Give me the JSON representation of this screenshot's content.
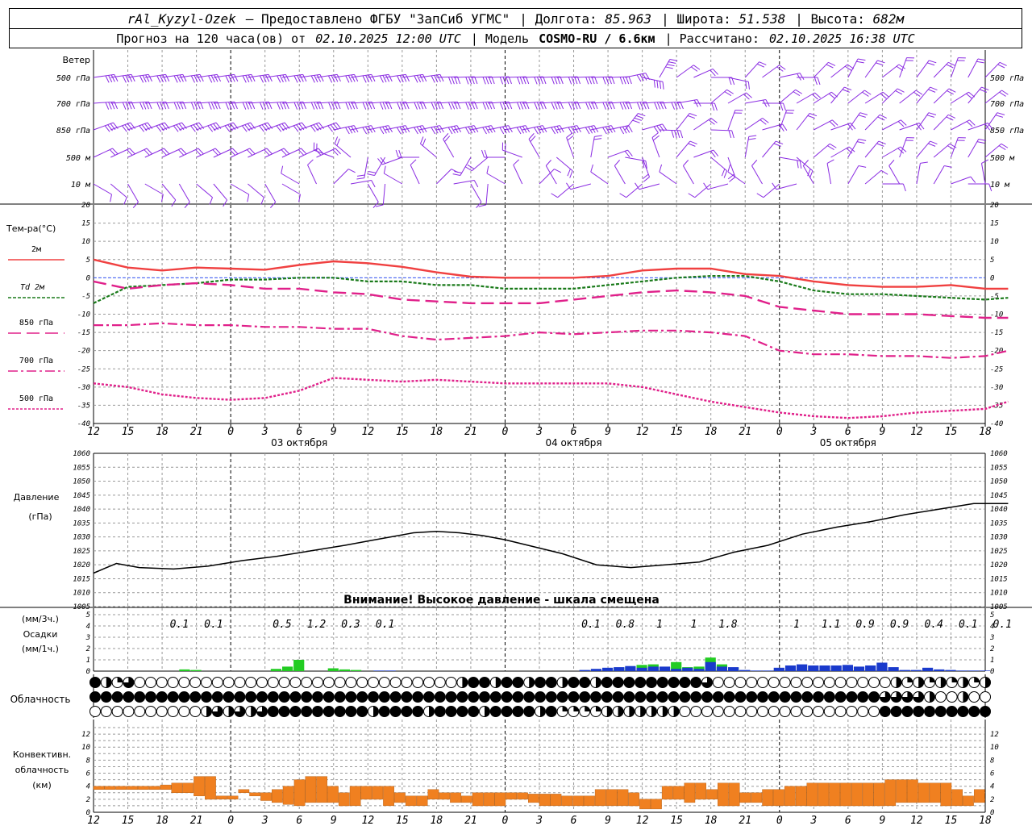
{
  "header": {
    "station": "rAl_Kyzyl-Ozek",
    "provider": "— Предоставлено ФГБУ \"ЗапСиб УГМС\"",
    "lon_label": "Долгота:",
    "lon": "85.963",
    "lat_label": "Широта:",
    "lat": "51.538",
    "alt_label": "Высота:",
    "alt": "682м",
    "forecast": "Прогноз на 120 часа(ов) от",
    "base_time": "02.10.2025 12:00 UTC",
    "model_label": "| Модель",
    "model": "COSMO-RU / 6.6км",
    "calc_label": "| Рассчитано:",
    "calc_time": "02.10.2025 16:38 UTC"
  },
  "time_axis": {
    "hour_labels": [
      "12",
      "15",
      "18",
      "21",
      "0",
      "3",
      "6",
      "9",
      "12",
      "15",
      "18",
      "21",
      "0",
      "3",
      "6",
      "9",
      "12",
      "15",
      "18",
      "21",
      "0",
      "3",
      "6",
      "9",
      "12",
      "15",
      "18"
    ],
    "day_labels": [
      {
        "text": "03 октября",
        "hour": 18
      },
      {
        "text": "04 октября",
        "hour": 42
      },
      {
        "text": "05 октября",
        "hour": 66
      }
    ],
    "midnights": [
      12,
      36,
      60
    ]
  },
  "wind_panel": {
    "title": "Ветер",
    "levels": [
      "500 гПа",
      "700 гПа",
      "850 гПа",
      "500 м",
      "10 м"
    ]
  },
  "temp_panel": {
    "title": "Тем-ра(°C)",
    "legend": [
      "2м",
      "Td 2м",
      "850 гПа",
      "700 гПа",
      "500 гПа"
    ],
    "ticks": [
      "20",
      "15",
      "10",
      "5",
      "0",
      "-5",
      "-10",
      "-15",
      "-20",
      "-25",
      "-30",
      "-35",
      "-40"
    ]
  },
  "pressure_panel": {
    "title1": "Давление",
    "title2": "(гПа)",
    "ticks": [
      "1060",
      "1055",
      "1050",
      "1045",
      "1040",
      "1035",
      "1030",
      "1025",
      "1020",
      "1015",
      "1010",
      "1005"
    ],
    "warning": "Внимание! Высокое давление - шкала смещена"
  },
  "precip_panel": {
    "label1": "(мм/3ч.)",
    "label2": "Осадки",
    "label3": "(мм/1ч.)",
    "ticks": [
      "5",
      "4",
      "3",
      "2",
      "1",
      "0"
    ],
    "sums": [
      {
        "hour": 7.5,
        "text": "0.1"
      },
      {
        "hour": 10.5,
        "text": "0.1"
      },
      {
        "hour": 16.5,
        "text": "0.5"
      },
      {
        "hour": 19.5,
        "text": "1.2"
      },
      {
        "hour": 22.5,
        "text": "0.3"
      },
      {
        "hour": 25.5,
        "text": "0.1"
      },
      {
        "hour": 43.5,
        "text": "0.1"
      },
      {
        "hour": 46.5,
        "text": "0.8"
      },
      {
        "hour": 49.5,
        "text": "1"
      },
      {
        "hour": 52.5,
        "text": "1"
      },
      {
        "hour": 55.5,
        "text": "1.8"
      },
      {
        "hour": 61.5,
        "text": "1"
      },
      {
        "hour": 64.5,
        "text": "1.1"
      },
      {
        "hour": 67.5,
        "text": "0.9"
      },
      {
        "hour": 70.5,
        "text": "0.9"
      },
      {
        "hour": 73.5,
        "text": "0.4"
      },
      {
        "hour": 76.5,
        "text": "0.1"
      },
      {
        "hour": 79.5,
        "text": "0.1"
      }
    ]
  },
  "cloud_panel": {
    "title": "Облачность"
  },
  "conv_panel": {
    "title1": "Конвективн.",
    "title2": "облачность",
    "title3": "(км)",
    "ticks": [
      "12",
      "10",
      "8",
      "6",
      "4",
      "2",
      "0"
    ]
  },
  "colors": {
    "wind": "#8a2be2",
    "t2m": "#f04040",
    "td2m": "#1a7a1a",
    "upper": "#e0208a",
    "zero_line": "#4060ff",
    "pressure": "#000000",
    "rain_green": "#22cc22",
    "rain_blue": "#1a3acc",
    "conv": "#f08020"
  },
  "chart_data": [
    {
      "type": "line",
      "title": "Тем-ра(°C)",
      "x_unit": "hours from 02.10.2025 12:00 UTC",
      "ylim": [
        -40,
        20
      ],
      "x": [
        0,
        3,
        6,
        9,
        12,
        15,
        18,
        21,
        24,
        27,
        30,
        33,
        36,
        39,
        42,
        45,
        48,
        51,
        54,
        57,
        60,
        63,
        66,
        69,
        72,
        75,
        78,
        80
      ],
      "series": [
        {
          "name": "2м",
          "values": [
            5,
            2.8,
            2.0,
            2.8,
            2.5,
            2.2,
            3.5,
            4.5,
            4.0,
            3.0,
            1.5,
            0.3,
            0,
            0,
            0,
            0.5,
            2.0,
            2.5,
            2.5,
            1.0,
            0.5,
            -1.0,
            -2.0,
            -2.5,
            -2.5,
            -2.0,
            -3.0,
            -3.0
          ]
        },
        {
          "name": "Td 2м",
          "values": [
            -7,
            -2.5,
            -2.0,
            -1.5,
            -0.5,
            -0.5,
            0,
            0,
            -1,
            -1,
            -2,
            -2,
            -3,
            -3,
            -3,
            -2,
            -1,
            0,
            0.5,
            0.5,
            -1.0,
            -3.5,
            -4.5,
            -4.5,
            -5.0,
            -5.5,
            -6.0,
            -5.5
          ]
        },
        {
          "name": "850 гПа",
          "values": [
            -1,
            -3,
            -2,
            -1.5,
            -2,
            -3,
            -3,
            -4,
            -4.5,
            -6,
            -6.5,
            -7,
            -7,
            -7,
            -6,
            -5,
            -4,
            -3.5,
            -4,
            -5,
            -8,
            -9,
            -10,
            -10,
            -10,
            -10.5,
            -11,
            -11
          ]
        },
        {
          "name": "700 гПа",
          "values": [
            -13,
            -13,
            -12.5,
            -13,
            -13,
            -13.5,
            -13.5,
            -14,
            -14,
            -16,
            -17,
            -16.5,
            -16,
            -15,
            -15.5,
            -15,
            -14.5,
            -14.5,
            -15,
            -16,
            -20,
            -21,
            -21,
            -21.5,
            -21.5,
            -22,
            -21.5,
            -20
          ]
        },
        {
          "name": "500 гПа",
          "values": [
            -29,
            -30,
            -32,
            -33,
            -33.5,
            -33,
            -31,
            -27.5,
            -28,
            -28.5,
            -28,
            -28.5,
            -29,
            -29,
            -29,
            -29,
            -30,
            -32,
            -34,
            -35.5,
            -37,
            -38,
            -38.5,
            -38,
            -37,
            -36.5,
            -36,
            -34
          ]
        }
      ]
    },
    {
      "type": "line",
      "title": "Давление",
      "ylabel": "(гПа)",
      "ylim": [
        1005,
        1060
      ],
      "x": [
        0,
        2,
        4,
        7,
        10,
        13,
        16,
        19,
        22,
        24,
        26,
        28,
        30,
        32,
        34,
        36,
        38,
        41,
        44,
        47,
        50,
        53,
        56,
        59,
        62,
        65,
        68,
        71,
        74,
        77,
        80
      ],
      "series": [
        {
          "name": "pressure",
          "values": [
            1017,
            1020.5,
            1019,
            1018.5,
            1019.5,
            1021.5,
            1023,
            1025,
            1027,
            1028.5,
            1030,
            1031.5,
            1032,
            1031.5,
            1030.5,
            1029,
            1027,
            1024,
            1020,
            1019,
            1020,
            1021,
            1024.5,
            1027,
            1031,
            1033.5,
            1035.5,
            1038,
            1040,
            1042,
            1042
          ]
        }
      ]
    },
    {
      "type": "bar",
      "title": "Осадки",
      "ylabel": "(мм/1ч.)",
      "ylim": [
        0,
        5
      ],
      "series": [
        {
          "name": "rain",
          "color": "green",
          "x": [
            8,
            9,
            16,
            17,
            18,
            21,
            22,
            23,
            45,
            46,
            47,
            48,
            49,
            50,
            51,
            52,
            53,
            54,
            55,
            56
          ],
          "values": [
            0.15,
            0.1,
            0.2,
            0.4,
            1.0,
            0.25,
            0.15,
            0.1,
            0.05,
            0.3,
            0.35,
            0.55,
            0.6,
            0.35,
            0.8,
            0.35,
            0.4,
            1.2,
            0.6,
            0.3
          ]
        },
        {
          "name": "snow",
          "color": "blue",
          "x": [
            25,
            26,
            43,
            44,
            45,
            46,
            47,
            48,
            49,
            50,
            51,
            52,
            53,
            54,
            55,
            56,
            57,
            58,
            59,
            60,
            61,
            62,
            63,
            64,
            65,
            66,
            67,
            68,
            69,
            70,
            71,
            72,
            73,
            74,
            75,
            76,
            77,
            78
          ],
          "values": [
            0.05,
            0.05,
            0.1,
            0.2,
            0.3,
            0.35,
            0.45,
            0.3,
            0.4,
            0.4,
            0.2,
            0.3,
            0.2,
            0.8,
            0.4,
            0.35,
            0.1,
            0.05,
            0.05,
            0.3,
            0.5,
            0.6,
            0.5,
            0.5,
            0.5,
            0.55,
            0.4,
            0.5,
            0.75,
            0.35,
            0.1,
            0.1,
            0.3,
            0.15,
            0.1,
            0.05,
            0.05,
            0.05
          ]
        }
      ]
    },
    {
      "type": "bar",
      "title": "Конвективн. облачность",
      "ylabel": "(км)",
      "ylim": [
        0,
        13
      ],
      "hours": [
        0,
        1,
        2,
        3,
        4,
        5,
        6,
        7,
        8,
        9,
        10,
        11,
        12,
        13,
        14,
        15,
        16,
        17,
        18,
        19,
        20,
        21,
        22,
        23,
        24,
        25,
        26,
        27,
        28,
        29,
        30,
        31,
        32,
        33,
        34,
        35,
        36,
        37,
        38,
        39,
        40,
        41,
        42,
        43,
        44,
        45,
        46,
        47,
        48,
        49,
        50,
        51,
        52,
        53,
        54,
        55,
        56,
        57,
        58,
        59,
        60,
        61,
        62,
        63,
        64,
        65,
        66,
        67,
        68,
        69,
        70,
        71,
        72,
        73,
        74,
        75,
        76,
        77,
        78,
        79
      ],
      "base": [
        3.5,
        3.5,
        3.5,
        3.5,
        3.5,
        3.5,
        3.5,
        3,
        3,
        2.5,
        2,
        2,
        2,
        3,
        2.5,
        1.8,
        1.5,
        1.2,
        1.0,
        1.5,
        1.5,
        1.5,
        1.0,
        1.0,
        2.0,
        2.0,
        1.0,
        1.5,
        1.0,
        1.0,
        2.0,
        2.0,
        1.5,
        1.5,
        1.0,
        1.0,
        1.0,
        2.0,
        2.0,
        1.5,
        1.0,
        1.0,
        1.0,
        1.0,
        1.0,
        1.0,
        1.0,
        1.0,
        1.0,
        0.5,
        0.5,
        2.0,
        2.0,
        1.5,
        2.0,
        2.0,
        1.0,
        1.0,
        1.5,
        1.5,
        1.0,
        1.0,
        1.0,
        1.0,
        1.0,
        1.0,
        1.0,
        1.0,
        1.0,
        1.0,
        1.0,
        1.0,
        1.5,
        1.5,
        1.5,
        1.5,
        1.0,
        1.0,
        1.0,
        1.5
      ],
      "top": [
        4,
        4,
        4,
        4,
        4,
        4,
        4.2,
        4.5,
        4.5,
        5.5,
        5.5,
        2.5,
        2.5,
        3.5,
        3,
        3,
        3.5,
        4,
        5,
        5.5,
        5.5,
        4,
        3,
        4,
        4,
        4,
        4,
        3,
        2.5,
        2.5,
        3.5,
        3,
        3,
        2.5,
        3,
        3,
        3,
        3,
        3,
        2.8,
        2.8,
        2.8,
        2.5,
        2.5,
        2.5,
        3.5,
        3.5,
        3.5,
        3,
        2,
        2,
        4,
        4,
        4.5,
        4.5,
        3.5,
        4.5,
        4.5,
        3,
        3,
        3.5,
        3.5,
        4,
        4,
        4.5,
        4.5,
        4.5,
        4.5,
        4.5,
        4.5,
        4.5,
        5,
        5,
        5,
        4.5,
        4.5,
        4.5,
        3.5,
        2.5,
        3.5
      ]
    }
  ]
}
